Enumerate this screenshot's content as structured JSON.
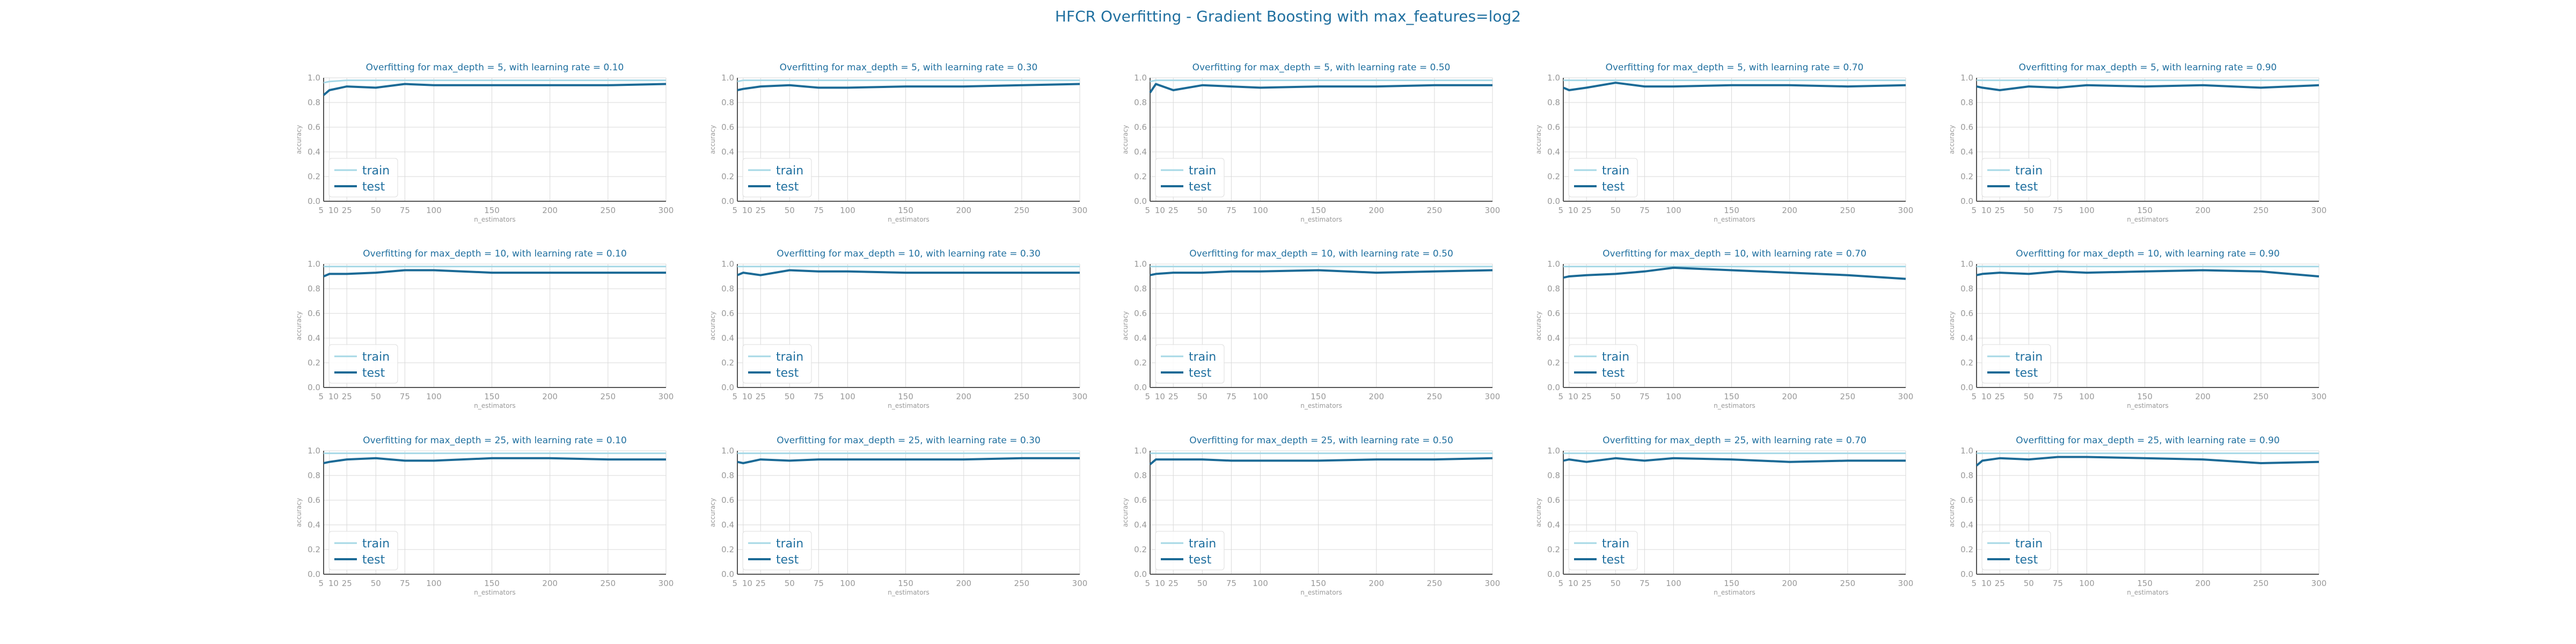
{
  "title": "HFCR Overfitting - Gradient Boosting with max_features=log2",
  "colors": {
    "train": "#a6d8e6",
    "test": "#1b6a96",
    "grid": "#d9d9d9",
    "axis": "#555555",
    "text": "#1f6f9f",
    "tick": "#999999"
  },
  "chart_data": [
    {
      "type": "line",
      "title": "Overfitting for max_depth = 5, with learning rate = 0.10",
      "xlabel": "n_estimators",
      "ylabel": "accuracy",
      "ylim": [
        0,
        1
      ],
      "x": [
        5,
        10,
        25,
        50,
        75,
        100,
        150,
        200,
        250,
        300
      ],
      "xticks": [
        5,
        10,
        25,
        50,
        75,
        100,
        150,
        200,
        250,
        300
      ],
      "yticks": [
        0.0,
        0.2,
        0.4,
        0.6,
        0.8,
        1.0
      ],
      "grid": true,
      "legend": "lower-left",
      "series": [
        {
          "name": "train",
          "values": [
            0.96,
            0.97,
            0.98,
            0.98,
            0.98,
            0.98,
            0.98,
            0.98,
            0.98,
            0.98
          ]
        },
        {
          "name": "test",
          "values": [
            0.86,
            0.9,
            0.93,
            0.92,
            0.95,
            0.94,
            0.94,
            0.94,
            0.94,
            0.95
          ]
        }
      ]
    },
    {
      "type": "line",
      "title": "Overfitting for max_depth = 5, with learning rate = 0.30",
      "xlabel": "n_estimators",
      "ylabel": "accuracy",
      "ylim": [
        0,
        1
      ],
      "x": [
        5,
        10,
        25,
        50,
        75,
        100,
        150,
        200,
        250,
        300
      ],
      "xticks": [
        5,
        10,
        25,
        50,
        75,
        100,
        150,
        200,
        250,
        300
      ],
      "yticks": [
        0.0,
        0.2,
        0.4,
        0.6,
        0.8,
        1.0
      ],
      "grid": true,
      "legend": "lower-left",
      "series": [
        {
          "name": "train",
          "values": [
            0.97,
            0.98,
            0.98,
            0.98,
            0.98,
            0.98,
            0.98,
            0.98,
            0.98,
            0.98
          ]
        },
        {
          "name": "test",
          "values": [
            0.9,
            0.91,
            0.93,
            0.94,
            0.92,
            0.92,
            0.93,
            0.93,
            0.94,
            0.95
          ]
        }
      ]
    },
    {
      "type": "line",
      "title": "Overfitting for max_depth = 5, with learning rate = 0.50",
      "xlabel": "n_estimators",
      "ylabel": "accuracy",
      "ylim": [
        0,
        1
      ],
      "x": [
        5,
        10,
        25,
        50,
        75,
        100,
        150,
        200,
        250,
        300
      ],
      "xticks": [
        5,
        10,
        25,
        50,
        75,
        100,
        150,
        200,
        250,
        300
      ],
      "yticks": [
        0.0,
        0.2,
        0.4,
        0.6,
        0.8,
        1.0
      ],
      "grid": true,
      "legend": "lower-left",
      "series": [
        {
          "name": "train",
          "values": [
            0.97,
            0.98,
            0.98,
            0.98,
            0.98,
            0.98,
            0.98,
            0.98,
            0.98,
            0.98
          ]
        },
        {
          "name": "test",
          "values": [
            0.88,
            0.95,
            0.9,
            0.94,
            0.93,
            0.92,
            0.93,
            0.93,
            0.94,
            0.94
          ]
        }
      ]
    },
    {
      "type": "line",
      "title": "Overfitting for max_depth = 5, with learning rate = 0.70",
      "xlabel": "n_estimators",
      "ylabel": "accuracy",
      "ylim": [
        0,
        1
      ],
      "x": [
        5,
        10,
        25,
        50,
        75,
        100,
        150,
        200,
        250,
        300
      ],
      "xticks": [
        5,
        10,
        25,
        50,
        75,
        100,
        150,
        200,
        250,
        300
      ],
      "yticks": [
        0.0,
        0.2,
        0.4,
        0.6,
        0.8,
        1.0
      ],
      "grid": true,
      "legend": "lower-left",
      "series": [
        {
          "name": "train",
          "values": [
            0.98,
            0.98,
            0.98,
            0.98,
            0.98,
            0.98,
            0.98,
            0.98,
            0.98,
            0.98
          ]
        },
        {
          "name": "test",
          "values": [
            0.92,
            0.9,
            0.92,
            0.96,
            0.93,
            0.93,
            0.94,
            0.94,
            0.93,
            0.94
          ]
        }
      ]
    },
    {
      "type": "line",
      "title": "Overfitting for max_depth = 5, with learning rate = 0.90",
      "xlabel": "n_estimators",
      "ylabel": "accuracy",
      "ylim": [
        0,
        1
      ],
      "x": [
        5,
        10,
        25,
        50,
        75,
        100,
        150,
        200,
        250,
        300
      ],
      "xticks": [
        5,
        10,
        25,
        50,
        75,
        100,
        150,
        200,
        250,
        300
      ],
      "yticks": [
        0.0,
        0.2,
        0.4,
        0.6,
        0.8,
        1.0
      ],
      "grid": true,
      "legend": "lower-left",
      "series": [
        {
          "name": "train",
          "values": [
            0.98,
            0.98,
            0.98,
            0.98,
            0.98,
            0.98,
            0.98,
            0.98,
            0.98,
            0.98
          ]
        },
        {
          "name": "test",
          "values": [
            0.93,
            0.92,
            0.9,
            0.93,
            0.92,
            0.94,
            0.93,
            0.94,
            0.92,
            0.94
          ]
        }
      ]
    },
    {
      "type": "line",
      "title": "Overfitting for max_depth = 10, with learning rate = 0.10",
      "xlabel": "n_estimators",
      "ylabel": "accuracy",
      "ylim": [
        0,
        1
      ],
      "x": [
        5,
        10,
        25,
        50,
        75,
        100,
        150,
        200,
        250,
        300
      ],
      "xticks": [
        5,
        10,
        25,
        50,
        75,
        100,
        150,
        200,
        250,
        300
      ],
      "yticks": [
        0.0,
        0.2,
        0.4,
        0.6,
        0.8,
        1.0
      ],
      "grid": true,
      "legend": "lower-left",
      "series": [
        {
          "name": "train",
          "values": [
            0.98,
            0.98,
            0.98,
            0.98,
            0.98,
            0.98,
            0.98,
            0.98,
            0.98,
            0.98
          ]
        },
        {
          "name": "test",
          "values": [
            0.9,
            0.92,
            0.92,
            0.93,
            0.95,
            0.95,
            0.93,
            0.93,
            0.93,
            0.93
          ]
        }
      ]
    },
    {
      "type": "line",
      "title": "Overfitting for max_depth = 10, with learning rate = 0.30",
      "xlabel": "n_estimators",
      "ylabel": "accuracy",
      "ylim": [
        0,
        1
      ],
      "x": [
        5,
        10,
        25,
        50,
        75,
        100,
        150,
        200,
        250,
        300
      ],
      "xticks": [
        5,
        10,
        25,
        50,
        75,
        100,
        150,
        200,
        250,
        300
      ],
      "yticks": [
        0.0,
        0.2,
        0.4,
        0.6,
        0.8,
        1.0
      ],
      "grid": true,
      "legend": "lower-left",
      "series": [
        {
          "name": "train",
          "values": [
            0.98,
            0.98,
            0.98,
            0.98,
            0.98,
            0.98,
            0.98,
            0.98,
            0.98,
            0.98
          ]
        },
        {
          "name": "test",
          "values": [
            0.91,
            0.93,
            0.91,
            0.95,
            0.94,
            0.94,
            0.93,
            0.93,
            0.93,
            0.93
          ]
        }
      ]
    },
    {
      "type": "line",
      "title": "Overfitting for max_depth = 10, with learning rate = 0.50",
      "xlabel": "n_estimators",
      "ylabel": "accuracy",
      "ylim": [
        0,
        1
      ],
      "x": [
        5,
        10,
        25,
        50,
        75,
        100,
        150,
        200,
        250,
        300
      ],
      "xticks": [
        5,
        10,
        25,
        50,
        75,
        100,
        150,
        200,
        250,
        300
      ],
      "yticks": [
        0.0,
        0.2,
        0.4,
        0.6,
        0.8,
        1.0
      ],
      "grid": true,
      "legend": "lower-left",
      "series": [
        {
          "name": "train",
          "values": [
            0.98,
            0.98,
            0.98,
            0.98,
            0.98,
            0.98,
            0.98,
            0.98,
            0.98,
            0.98
          ]
        },
        {
          "name": "test",
          "values": [
            0.91,
            0.92,
            0.93,
            0.93,
            0.94,
            0.94,
            0.95,
            0.93,
            0.94,
            0.95
          ]
        }
      ]
    },
    {
      "type": "line",
      "title": "Overfitting for max_depth = 10, with learning rate = 0.70",
      "xlabel": "n_estimators",
      "ylabel": "accuracy",
      "ylim": [
        0,
        1
      ],
      "x": [
        5,
        10,
        25,
        50,
        75,
        100,
        150,
        200,
        250,
        300
      ],
      "xticks": [
        5,
        10,
        25,
        50,
        75,
        100,
        150,
        200,
        250,
        300
      ],
      "yticks": [
        0.0,
        0.2,
        0.4,
        0.6,
        0.8,
        1.0
      ],
      "grid": true,
      "legend": "lower-left",
      "series": [
        {
          "name": "train",
          "values": [
            0.98,
            0.98,
            0.98,
            0.98,
            0.98,
            0.98,
            0.98,
            0.98,
            0.98,
            0.98
          ]
        },
        {
          "name": "test",
          "values": [
            0.89,
            0.9,
            0.91,
            0.92,
            0.94,
            0.97,
            0.95,
            0.93,
            0.91,
            0.88
          ]
        }
      ]
    },
    {
      "type": "line",
      "title": "Overfitting for max_depth = 10, with learning rate = 0.90",
      "xlabel": "n_estimators",
      "ylabel": "accuracy",
      "ylim": [
        0,
        1
      ],
      "x": [
        5,
        10,
        25,
        50,
        75,
        100,
        150,
        200,
        250,
        300
      ],
      "xticks": [
        5,
        10,
        25,
        50,
        75,
        100,
        150,
        200,
        250,
        300
      ],
      "yticks": [
        0.0,
        0.2,
        0.4,
        0.6,
        0.8,
        1.0
      ],
      "grid": true,
      "legend": "lower-left",
      "series": [
        {
          "name": "train",
          "values": [
            0.98,
            0.98,
            0.98,
            0.98,
            0.98,
            0.98,
            0.98,
            0.98,
            0.98,
            0.98
          ]
        },
        {
          "name": "test",
          "values": [
            0.91,
            0.92,
            0.93,
            0.92,
            0.94,
            0.93,
            0.94,
            0.95,
            0.94,
            0.9
          ]
        }
      ]
    },
    {
      "type": "line",
      "title": "Overfitting for max_depth = 25, with learning rate = 0.10",
      "xlabel": "n_estimators",
      "ylabel": "accuracy",
      "ylim": [
        0,
        1
      ],
      "x": [
        5,
        10,
        25,
        50,
        75,
        100,
        150,
        200,
        250,
        300
      ],
      "xticks": [
        5,
        10,
        25,
        50,
        75,
        100,
        150,
        200,
        250,
        300
      ],
      "yticks": [
        0.0,
        0.2,
        0.4,
        0.6,
        0.8,
        1.0
      ],
      "grid": true,
      "legend": "lower-left",
      "series": [
        {
          "name": "train",
          "values": [
            0.98,
            0.98,
            0.98,
            0.98,
            0.98,
            0.98,
            0.98,
            0.98,
            0.98,
            0.98
          ]
        },
        {
          "name": "test",
          "values": [
            0.9,
            0.91,
            0.93,
            0.94,
            0.92,
            0.92,
            0.94,
            0.94,
            0.93,
            0.93
          ]
        }
      ]
    },
    {
      "type": "line",
      "title": "Overfitting for max_depth = 25, with learning rate = 0.30",
      "xlabel": "n_estimators",
      "ylabel": "accuracy",
      "ylim": [
        0,
        1
      ],
      "x": [
        5,
        10,
        25,
        50,
        75,
        100,
        150,
        200,
        250,
        300
      ],
      "xticks": [
        5,
        10,
        25,
        50,
        75,
        100,
        150,
        200,
        250,
        300
      ],
      "yticks": [
        0.0,
        0.2,
        0.4,
        0.6,
        0.8,
        1.0
      ],
      "grid": true,
      "legend": "lower-left",
      "series": [
        {
          "name": "train",
          "values": [
            0.98,
            0.98,
            0.98,
            0.98,
            0.98,
            0.98,
            0.98,
            0.98,
            0.98,
            0.98
          ]
        },
        {
          "name": "test",
          "values": [
            0.91,
            0.9,
            0.93,
            0.92,
            0.93,
            0.93,
            0.93,
            0.93,
            0.94,
            0.94
          ]
        }
      ]
    },
    {
      "type": "line",
      "title": "Overfitting for max_depth = 25, with learning rate = 0.50",
      "xlabel": "n_estimators",
      "ylabel": "accuracy",
      "ylim": [
        0,
        1
      ],
      "x": [
        5,
        10,
        25,
        50,
        75,
        100,
        150,
        200,
        250,
        300
      ],
      "xticks": [
        5,
        10,
        25,
        50,
        75,
        100,
        150,
        200,
        250,
        300
      ],
      "yticks": [
        0.0,
        0.2,
        0.4,
        0.6,
        0.8,
        1.0
      ],
      "grid": true,
      "legend": "lower-left",
      "series": [
        {
          "name": "train",
          "values": [
            0.98,
            0.98,
            0.98,
            0.98,
            0.98,
            0.98,
            0.98,
            0.98,
            0.98,
            0.98
          ]
        },
        {
          "name": "test",
          "values": [
            0.89,
            0.93,
            0.93,
            0.93,
            0.92,
            0.92,
            0.92,
            0.93,
            0.93,
            0.94
          ]
        }
      ]
    },
    {
      "type": "line",
      "title": "Overfitting for max_depth = 25, with learning rate = 0.70",
      "xlabel": "n_estimators",
      "ylabel": "accuracy",
      "ylim": [
        0,
        1
      ],
      "x": [
        5,
        10,
        25,
        50,
        75,
        100,
        150,
        200,
        250,
        300
      ],
      "xticks": [
        5,
        10,
        25,
        50,
        75,
        100,
        150,
        200,
        250,
        300
      ],
      "yticks": [
        0.0,
        0.2,
        0.4,
        0.6,
        0.8,
        1.0
      ],
      "grid": true,
      "legend": "lower-left",
      "series": [
        {
          "name": "train",
          "values": [
            0.98,
            0.98,
            0.98,
            0.98,
            0.98,
            0.98,
            0.98,
            0.98,
            0.98,
            0.98
          ]
        },
        {
          "name": "test",
          "values": [
            0.92,
            0.93,
            0.91,
            0.94,
            0.92,
            0.94,
            0.93,
            0.91,
            0.92,
            0.92
          ]
        }
      ]
    },
    {
      "type": "line",
      "title": "Overfitting for max_depth = 25, with learning rate = 0.90",
      "xlabel": "n_estimators",
      "ylabel": "accuracy",
      "ylim": [
        0,
        1
      ],
      "x": [
        5,
        10,
        25,
        50,
        75,
        100,
        150,
        200,
        250,
        300
      ],
      "xticks": [
        5,
        10,
        25,
        50,
        75,
        100,
        150,
        200,
        250,
        300
      ],
      "yticks": [
        0.0,
        0.2,
        0.4,
        0.6,
        0.8,
        1.0
      ],
      "grid": true,
      "legend": "lower-left",
      "series": [
        {
          "name": "train",
          "values": [
            0.98,
            0.98,
            0.98,
            0.98,
            0.98,
            0.98,
            0.98,
            0.98,
            0.98,
            0.98
          ]
        },
        {
          "name": "test",
          "values": [
            0.88,
            0.92,
            0.94,
            0.93,
            0.95,
            0.95,
            0.94,
            0.93,
            0.9,
            0.91
          ]
        }
      ]
    }
  ]
}
